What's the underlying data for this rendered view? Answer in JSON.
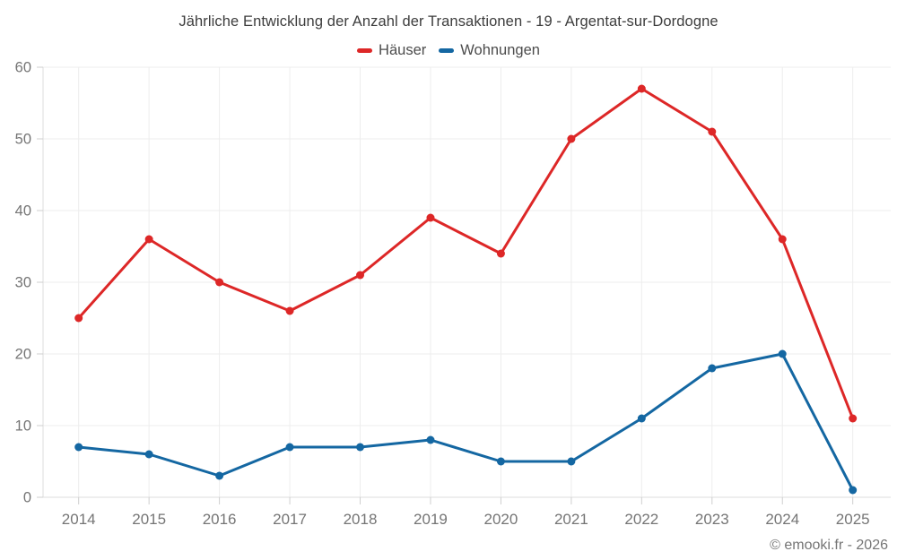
{
  "chart_data": {
    "type": "line",
    "title": "Jährliche Entwicklung der Anzahl der Transaktionen - 19 - Argentat-sur-Dordogne",
    "categories": [
      "2014",
      "2015",
      "2016",
      "2017",
      "2018",
      "2019",
      "2020",
      "2021",
      "2022",
      "2023",
      "2024",
      "2025"
    ],
    "series": [
      {
        "name": "Häuser",
        "color": "#dd2727",
        "values": [
          25,
          36,
          30,
          26,
          31,
          39,
          34,
          50,
          57,
          51,
          36,
          11
        ]
      },
      {
        "name": "Wohnungen",
        "color": "#1467a2",
        "values": [
          7,
          6,
          3,
          7,
          7,
          8,
          5,
          5,
          11,
          18,
          20,
          1
        ]
      }
    ],
    "ylim": [
      0,
      60
    ],
    "yticks": [
      0,
      10,
      20,
      30,
      40,
      50,
      60
    ],
    "grid": true,
    "legend_position": "top"
  },
  "footer": {
    "credit": "© emooki.fr - 2026"
  },
  "colors": {
    "title_text": "#3d3d3d",
    "legend_text": "#4c4c4c",
    "axis_label": "#757575",
    "gridline": "#ededed",
    "axis_line": "#dcdcdc",
    "tick": "#cfcfcf",
    "background": "#ffffff"
  }
}
